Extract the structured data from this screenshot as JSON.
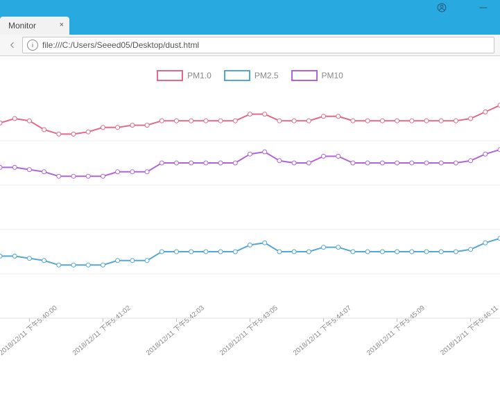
{
  "window": {
    "titlebar_color": "#28aae1",
    "user_icon_color": "#386a8a",
    "minimize_glyph": "—"
  },
  "tab": {
    "title": "Monitor",
    "close_glyph": "×"
  },
  "addressbar": {
    "url": "file:///C:/Users/Seeed05/Desktop/dust.html",
    "info_glyph": "i"
  },
  "chart": {
    "background_color": "#ffffff",
    "grid_color": "#eeeeee",
    "axis_label_color": "#888888",
    "legend_font_size": 12,
    "xlabel_font_size": 10,
    "xlabel_rotation": -40,
    "line_width": 2,
    "marker_radius": 3,
    "ylim": [
      0,
      100
    ],
    "xtick_labels": [
      "2018/12/11 下午5:40:00",
      "2018/12/11 下午5:41:02",
      "2018/12/11 下午5:42:03",
      "2018/12/11 下午5:43:05",
      "2018/12/11 下午5:44:07",
      "2018/12/11 下午5:45:09",
      "2018/12/11 下午5:46:11"
    ],
    "xtick_positions": [
      2,
      7,
      12,
      17,
      22,
      27,
      32
    ],
    "series": [
      {
        "id": "pm1",
        "label": "PM1.0",
        "color": "#e06a87",
        "values": [
          88,
          90,
          89,
          85,
          83,
          83,
          84,
          86,
          86,
          87,
          87,
          89,
          89,
          89,
          89,
          89,
          89,
          92,
          92,
          89,
          89,
          89,
          91,
          91,
          89,
          89,
          89,
          89,
          89,
          89,
          89,
          89,
          90,
          93,
          96
        ]
      },
      {
        "id": "pm25",
        "label": "PM2.5",
        "color": "#52a7d6",
        "values": [
          28,
          28,
          27,
          26,
          24,
          24,
          24,
          24,
          26,
          26,
          26,
          30,
          30,
          30,
          30,
          30,
          30,
          33,
          34,
          30,
          30,
          30,
          32,
          32,
          30,
          30,
          30,
          30,
          30,
          30,
          30,
          30,
          31,
          34,
          36
        ]
      },
      {
        "id": "pm10",
        "label": "PM10",
        "color": "#b163d8",
        "values": [
          68,
          68,
          67,
          66,
          64,
          64,
          64,
          64,
          66,
          66,
          66,
          70,
          70,
          70,
          70,
          70,
          70,
          74,
          75,
          71,
          70,
          70,
          73,
          73,
          70,
          70,
          70,
          70,
          70,
          70,
          70,
          70,
          71,
          74,
          76
        ]
      }
    ]
  }
}
